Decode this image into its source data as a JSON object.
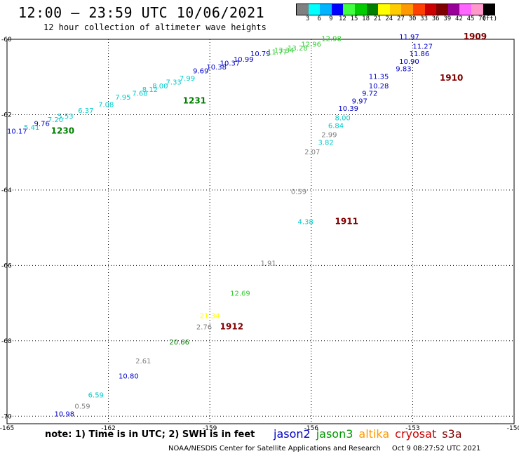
{
  "header": {
    "title": "12:00 — 23:59 UTC 10/06/2021",
    "subtitle": "12 hour collection of altimeter wave heights"
  },
  "colorbar": {
    "colors": [
      "#808080",
      "#00ffff",
      "#00b4ff",
      "#0000ff",
      "#40ff40",
      "#00cc00",
      "#008000",
      "#ffff00",
      "#ffcc00",
      "#ff9900",
      "#ff4000",
      "#cc0000",
      "#800000",
      "#990099",
      "#ff66ff",
      "#ff99cc",
      "#000000"
    ],
    "labels": [
      "3",
      "6",
      "9",
      "12",
      "15",
      "18",
      "21",
      "24",
      "27",
      "30",
      "33",
      "36",
      "39",
      "42",
      "45",
      "70",
      "(ft)"
    ]
  },
  "axes": {
    "lon_ticks": [
      "-165",
      "-162",
      "-159",
      "-156",
      "-153",
      "-150"
    ],
    "lat_ticks": [
      "-60",
      "-62",
      "-64",
      "-66",
      "-68",
      "-70"
    ]
  },
  "passes": [
    {
      "label": "1909",
      "lon": -151.5,
      "lat": -60.0
    },
    {
      "label": "1910",
      "lon": -152.2,
      "lat": -61.1
    },
    {
      "label": "1230",
      "lon": -163.7,
      "lat": -62.5
    },
    {
      "label": "1231",
      "lon": -159.8,
      "lat": -61.7
    },
    {
      "label": "1911",
      "lon": -155.3,
      "lat": -64.9
    },
    {
      "label": "1912",
      "lon": -158.7,
      "lat": -67.7
    }
  ],
  "measurements": [
    {
      "v": "10.17",
      "lon": -165.0,
      "lat": -62.5,
      "c": "#0000cc"
    },
    {
      "v": "5.41",
      "lon": -164.5,
      "lat": -62.4,
      "c": "#00cccc"
    },
    {
      "v": "9.76",
      "lon": -164.2,
      "lat": -62.3,
      "c": "#0000cc"
    },
    {
      "v": "7.20",
      "lon": -163.8,
      "lat": -62.2,
      "c": "#00cccc"
    },
    {
      "v": "5.53",
      "lon": -163.5,
      "lat": -62.1,
      "c": "#00cccc"
    },
    {
      "v": "6.37",
      "lon": -162.9,
      "lat": -61.95,
      "c": "#00cccc"
    },
    {
      "v": "7.08",
      "lon": -162.3,
      "lat": -61.8,
      "c": "#00cccc"
    },
    {
      "v": "7.95",
      "lon": -161.8,
      "lat": -61.6,
      "c": "#00cccc"
    },
    {
      "v": "7.68",
      "lon": -161.3,
      "lat": -61.5,
      "c": "#00cccc"
    },
    {
      "v": "8.12",
      "lon": -161.0,
      "lat": -61.4,
      "c": "#00cccc"
    },
    {
      "v": "8.00",
      "lon": -160.7,
      "lat": -61.3,
      "c": "#00cccc"
    },
    {
      "v": "7.33",
      "lon": -160.3,
      "lat": -61.2,
      "c": "#00cccc"
    },
    {
      "v": "7.99",
      "lon": -159.9,
      "lat": -61.1,
      "c": "#00cccc"
    },
    {
      "v": "9.69",
      "lon": -159.5,
      "lat": -60.9,
      "c": "#0000cc"
    },
    {
      "v": "10.38",
      "lon": -159.1,
      "lat": -60.8,
      "c": "#0000cc"
    },
    {
      "v": "10.37",
      "lon": -158.7,
      "lat": -60.7,
      "c": "#0000cc"
    },
    {
      "v": "10.99",
      "lon": -158.3,
      "lat": -60.6,
      "c": "#0000cc"
    },
    {
      "v": "10.79",
      "lon": -157.8,
      "lat": -60.45,
      "c": "#0000cc"
    },
    {
      "v": "11.77",
      "lon": -157.3,
      "lat": -60.4,
      "c": "#33cc33"
    },
    {
      "v": "13.34",
      "lon": -157.1,
      "lat": -60.35,
      "c": "#33cc33"
    },
    {
      "v": "13.28",
      "lon": -156.7,
      "lat": -60.3,
      "c": "#33cc33"
    },
    {
      "v": "12.96",
      "lon": -156.3,
      "lat": -60.2,
      "c": "#33cc33"
    },
    {
      "v": "12.98",
      "lon": -155.7,
      "lat": -60.05,
      "c": "#33cc33"
    },
    {
      "v": "11.97",
      "lon": -153.4,
      "lat": -60.0,
      "c": "#0000cc"
    },
    {
      "v": "11.27",
      "lon": -153.0,
      "lat": -60.25,
      "c": "#0000cc"
    },
    {
      "v": "11.86",
      "lon": -153.1,
      "lat": -60.45,
      "c": "#0000cc"
    },
    {
      "v": "10.90",
      "lon": -153.4,
      "lat": -60.65,
      "c": "#0000cc"
    },
    {
      "v": "9.83",
      "lon": -153.5,
      "lat": -60.85,
      "c": "#0000cc"
    },
    {
      "v": "11.35",
      "lon": -154.3,
      "lat": -61.05,
      "c": "#0000cc"
    },
    {
      "v": "10.28",
      "lon": -154.3,
      "lat": -61.3,
      "c": "#0000cc"
    },
    {
      "v": "9.72",
      "lon": -154.5,
      "lat": -61.5,
      "c": "#0000cc"
    },
    {
      "v": "9.97",
      "lon": -154.8,
      "lat": -61.7,
      "c": "#0000cc"
    },
    {
      "v": "10.39",
      "lon": -155.2,
      "lat": -61.9,
      "c": "#0000cc"
    },
    {
      "v": "8.00",
      "lon": -155.3,
      "lat": -62.15,
      "c": "#00cccc"
    },
    {
      "v": "6.84",
      "lon": -155.5,
      "lat": -62.35,
      "c": "#00cccc"
    },
    {
      "v": "2.99",
      "lon": -155.7,
      "lat": -62.6,
      "c": "#808080"
    },
    {
      "v": "3.82",
      "lon": -155.8,
      "lat": -62.8,
      "c": "#00cccc"
    },
    {
      "v": "2.07",
      "lon": -156.2,
      "lat": -63.05,
      "c": "#808080"
    },
    {
      "v": "0.59",
      "lon": -156.6,
      "lat": -64.1,
      "c": "#808080"
    },
    {
      "v": "4.38",
      "lon": -156.4,
      "lat": -64.9,
      "c": "#00cccc"
    },
    {
      "v": "1.91",
      "lon": -157.5,
      "lat": -66.0,
      "c": "#808080"
    },
    {
      "v": "12.69",
      "lon": -158.4,
      "lat": -66.8,
      "c": "#33cc33"
    },
    {
      "v": "21.34",
      "lon": -159.3,
      "lat": -67.4,
      "c": "#ffff00"
    },
    {
      "v": "2.76",
      "lon": -159.4,
      "lat": -67.7,
      "c": "#808080"
    },
    {
      "v": "20.66",
      "lon": -160.2,
      "lat": -68.1,
      "c": "#008000"
    },
    {
      "v": "2.61",
      "lon": -161.2,
      "lat": -68.6,
      "c": "#808080"
    },
    {
      "v": "10.80",
      "lon": -161.7,
      "lat": -69.0,
      "c": "#0000cc"
    },
    {
      "v": "6.59",
      "lon": -162.6,
      "lat": -69.5,
      "c": "#00cccc"
    },
    {
      "v": "0.59",
      "lon": -163.0,
      "lat": -69.8,
      "c": "#808080"
    },
    {
      "v": "10.98",
      "lon": -163.6,
      "lat": -70.0,
      "c": "#0000cc"
    }
  ],
  "note": "note: 1) Time is in UTC; 2) SWH is in feet",
  "legend": [
    {
      "name": "jason2",
      "color": "#0000cc"
    },
    {
      "name": "jason3",
      "color": "#009900"
    },
    {
      "name": "altika",
      "color": "#ff9900"
    },
    {
      "name": "cryosat",
      "color": "#cc0000"
    },
    {
      "name": "s3a",
      "color": "#800000"
    }
  ],
  "footer": {
    "credit": "NOAA/NESDIS Center for Satellite Applications and Research",
    "timestamp": "Oct  9 08:27:52 UTC 2021"
  }
}
